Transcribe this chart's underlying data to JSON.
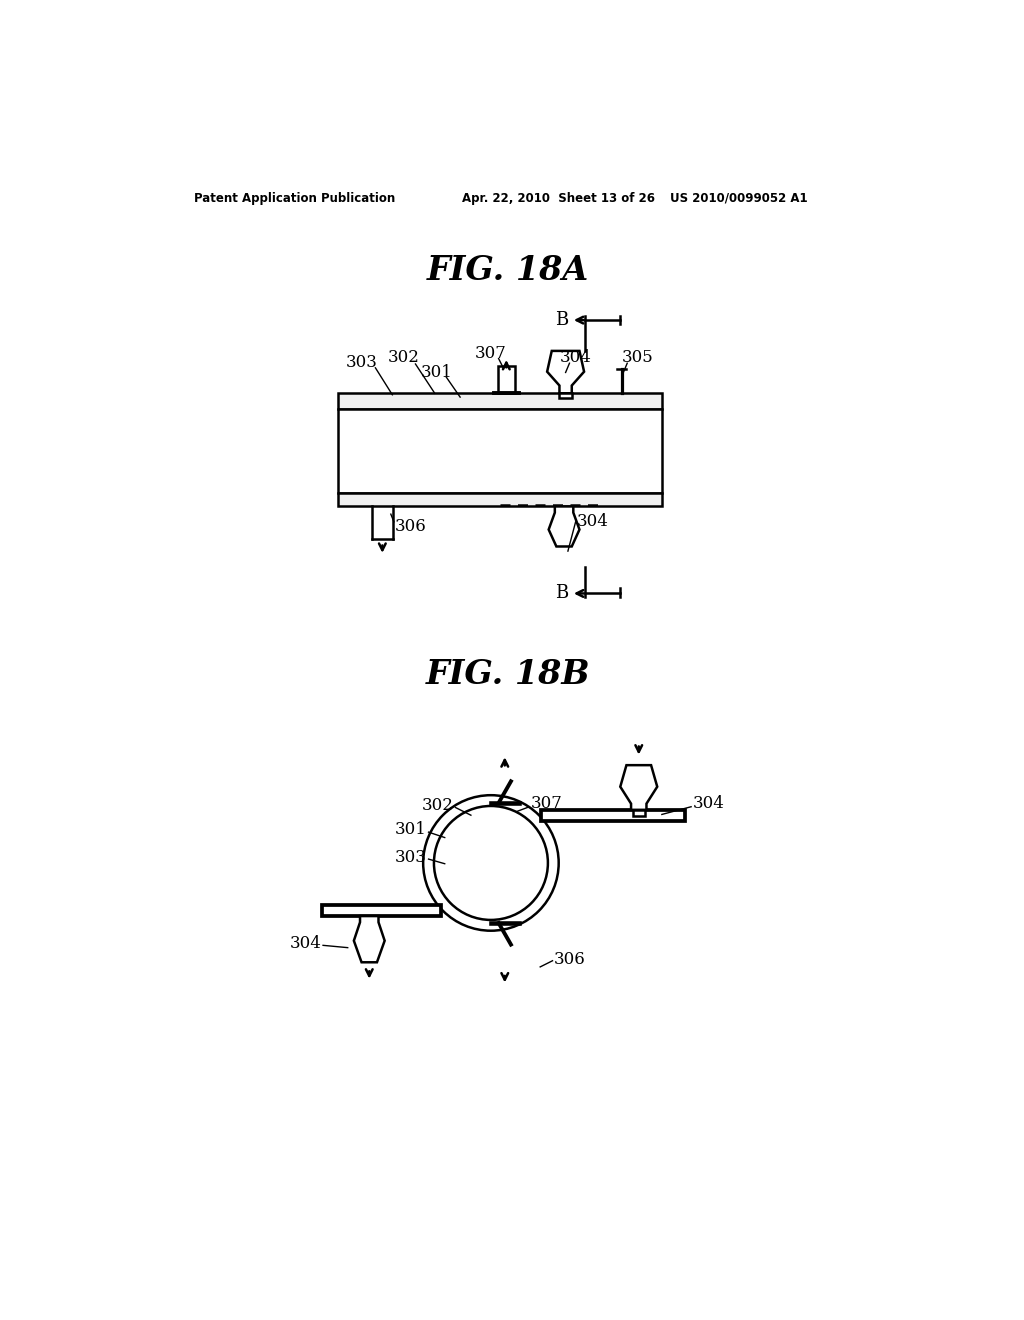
{
  "background_color": "#ffffff",
  "header_left": "Patent Application Publication",
  "header_mid": "Apr. 22, 2010  Sheet 13 of 26",
  "header_right": "US 2010/0099052 A1",
  "fig18a_title": "FIG. 18A",
  "fig18b_title": "FIG. 18B",
  "line_color": "#000000"
}
